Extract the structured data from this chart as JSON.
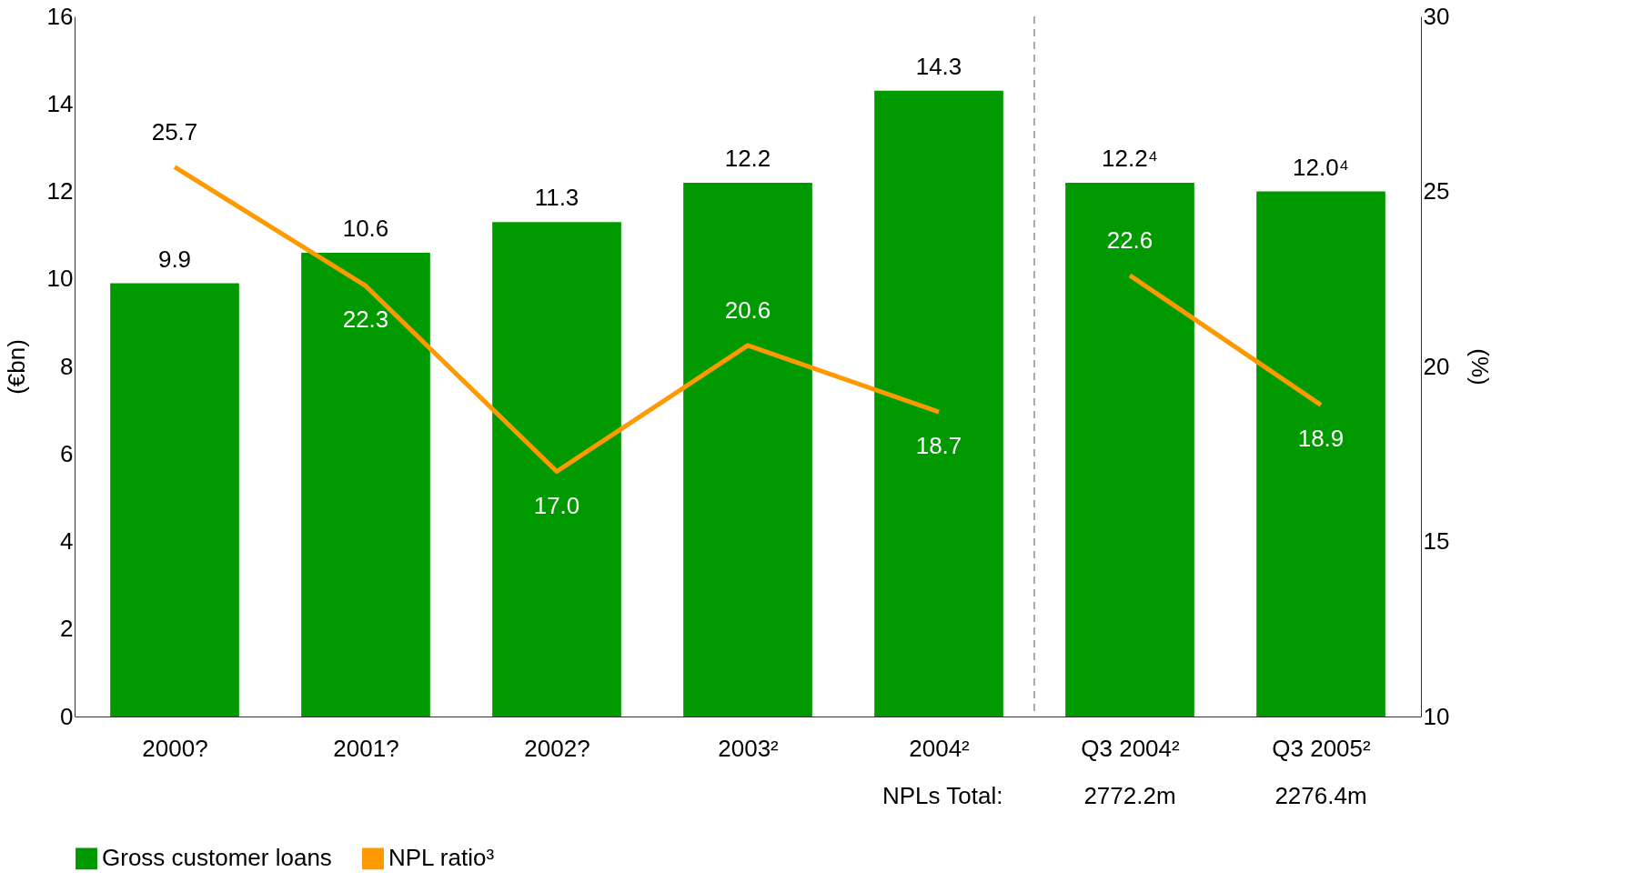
{
  "chart_data": {
    "type": "bar",
    "categories": [
      "2000?",
      "2001?",
      "2002?",
      "2003²",
      "2004²",
      "Q3 2004²",
      "Q3 2005²"
    ],
    "ylabel": "(€bn)",
    "y2label": "(%)",
    "ylim": [
      0,
      16
    ],
    "yticks": [
      0,
      2,
      4,
      6,
      8,
      10,
      12,
      14,
      16
    ],
    "y2lim": [
      10,
      30
    ],
    "y2ticks": [
      10,
      15,
      20,
      25,
      30
    ],
    "series": [
      {
        "name": "Gross customer loans",
        "color": "#009900",
        "values": [
          9.9,
          10.6,
          11.3,
          12.2,
          14.3,
          12.2,
          12.0
        ],
        "value_labels": [
          "9.9",
          "10.6",
          "11.3",
          "12.2",
          "14.3",
          "12.2⁴",
          "12.0⁴"
        ]
      },
      {
        "name": "NPL ratio³",
        "type": "line",
        "axis": "y2",
        "color": "#ff9900",
        "values": [
          25.7,
          22.3,
          17.0,
          20.6,
          18.7,
          null,
          null
        ],
        "value_labels": [
          "25.7",
          "22.3",
          "17.0",
          "20.6",
          "18.7",
          null,
          null
        ]
      },
      {
        "type": "line",
        "axis": "y2",
        "color": "#ff9900",
        "values": [
          null,
          null,
          null,
          null,
          null,
          22.6,
          18.9
        ],
        "value_labels": [
          null,
          null,
          null,
          null,
          null,
          "22.6",
          "18.9"
        ]
      }
    ],
    "annotations": [
      "NPLs Total:",
      "2772.2m",
      "2276.4m"
    ],
    "grid": false,
    "legend": "bottom"
  }
}
